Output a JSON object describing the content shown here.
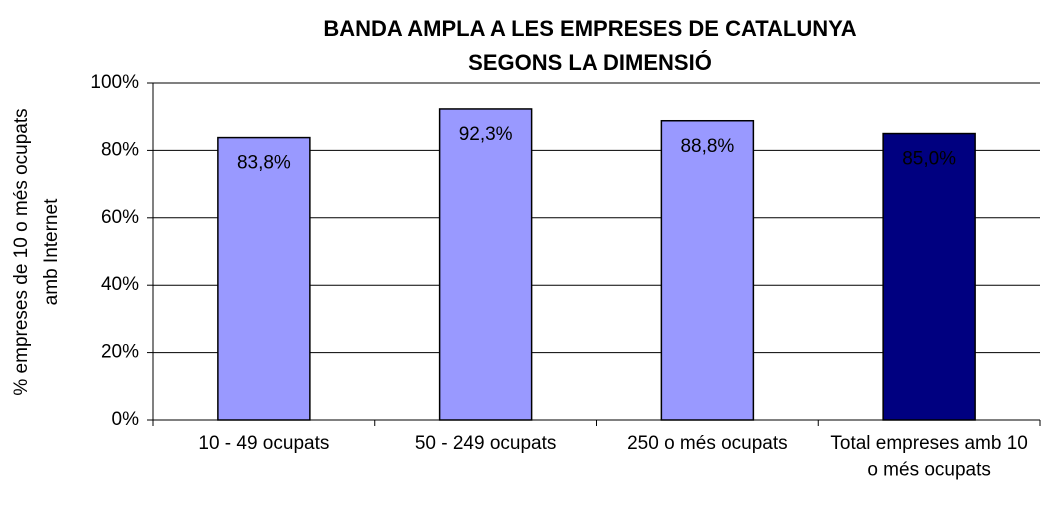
{
  "chart_data": {
    "type": "bar",
    "title": [
      "BANDA AMPLA A LES EMPRESES DE CATALUNYA",
      "SEGONS LA DIMENSIÓ"
    ],
    "ylabel": [
      "% empreses de 10 o més ocupats",
      "amb Internet"
    ],
    "categories": [
      "10 - 49 ocupats",
      "50 - 249 ocupats",
      "250 o més  ocupats",
      "Total empreses amb 10 o més ocupats"
    ],
    "values": [
      83.8,
      92.3,
      88.8,
      85.0
    ],
    "value_labels": [
      "83,8%",
      "92,3%",
      "88,8%",
      "85,0%"
    ],
    "colors": [
      "#9999ff",
      "#9999ff",
      "#9999ff",
      "#000080"
    ],
    "value_label_colors": [
      "#000000",
      "#000000",
      "#000000",
      "#ffffff"
    ],
    "ylim": [
      0,
      100
    ],
    "yticks": [
      {
        "value": 0,
        "label": "0%"
      },
      {
        "value": 20,
        "label": "20%"
      },
      {
        "value": 40,
        "label": "40%"
      },
      {
        "value": 60,
        "label": "60%"
      },
      {
        "value": 80,
        "label": "80%"
      },
      {
        "value": 100,
        "label": "100%"
      }
    ],
    "grid": true
  }
}
